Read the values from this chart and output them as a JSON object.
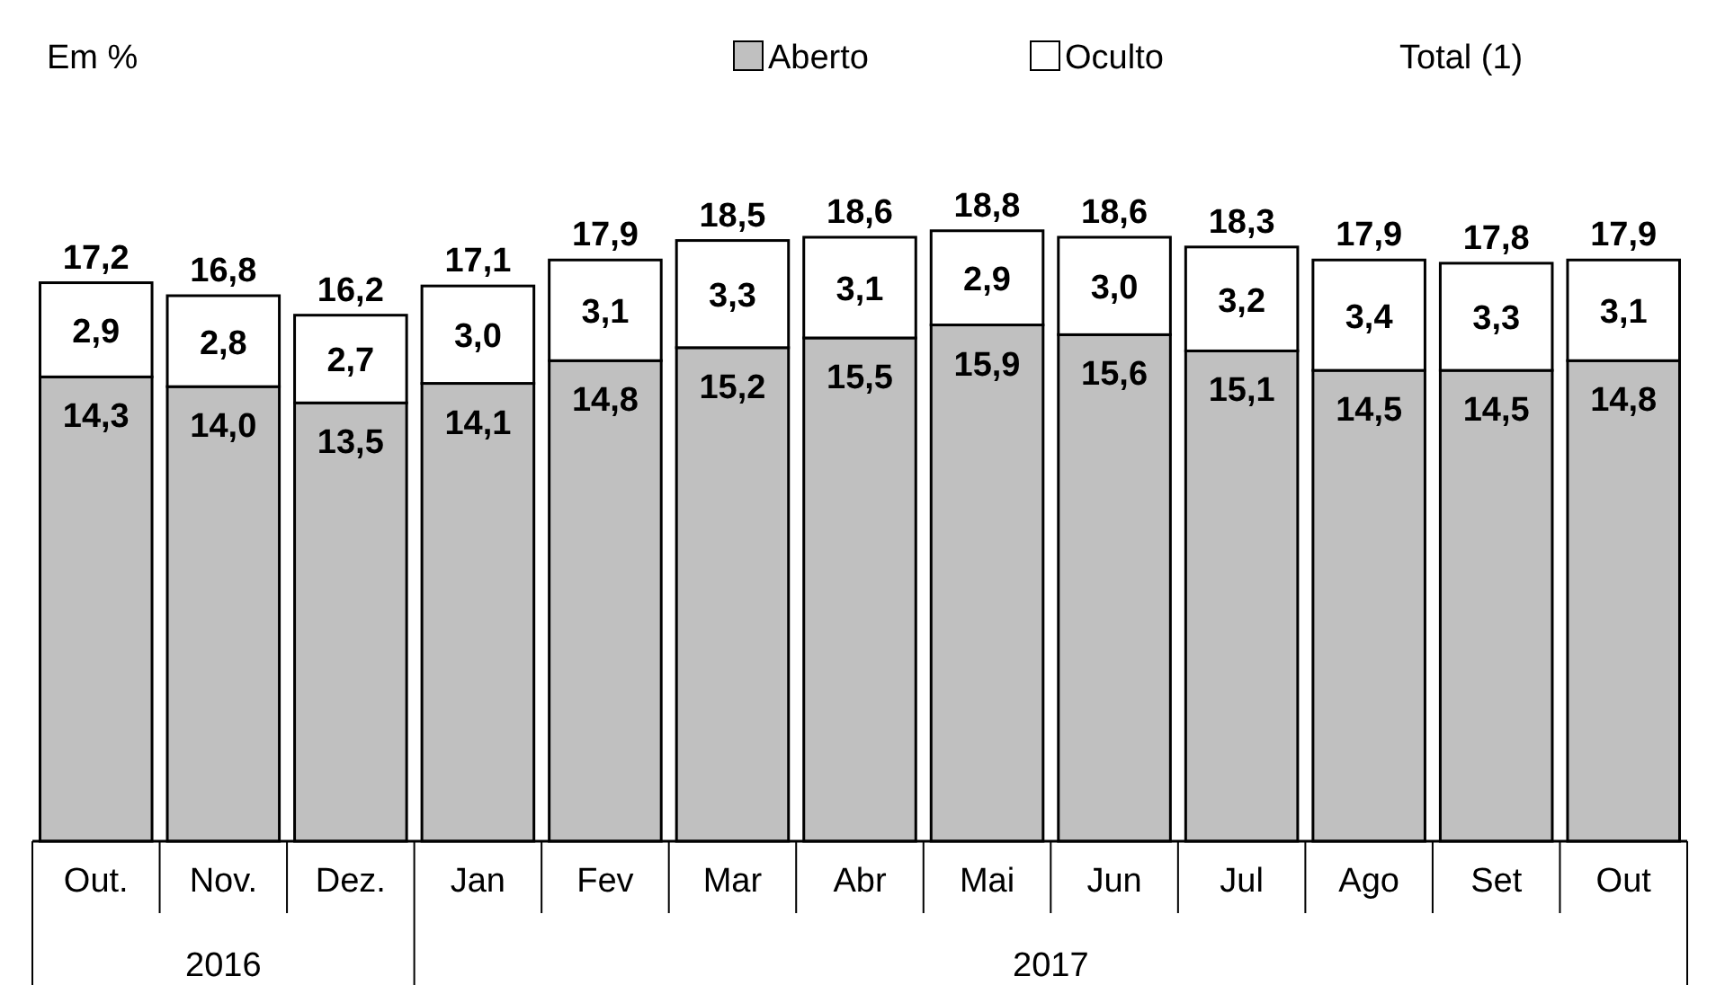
{
  "chart_data": {
    "type": "bar",
    "stacked": true,
    "ylabel": "Em %",
    "legend": "top right",
    "legend_title": "Total (1)",
    "categories": [
      "Out.",
      "Nov.",
      "Dez.",
      "Jan",
      "Fev",
      "Mar",
      "Abr",
      "Mai",
      "Jun",
      "Jul",
      "Ago",
      "Set",
      "Out"
    ],
    "series": [
      {
        "name": "Aberto",
        "color": "#c0c0c0",
        "values": [
          14.3,
          14.0,
          13.5,
          14.1,
          14.8,
          15.2,
          15.5,
          15.9,
          15.6,
          15.1,
          14.5,
          14.5,
          14.8
        ],
        "value_labels": [
          "14,3",
          "14,0",
          "13,5",
          "14,1",
          "14,8",
          "15,2",
          "15,5",
          "15,9",
          "15,6",
          "15,1",
          "14,5",
          "14,5",
          "14,8"
        ]
      },
      {
        "name": "Oculto",
        "color": "#ffffff",
        "values": [
          2.9,
          2.8,
          2.7,
          3.0,
          3.1,
          3.3,
          3.1,
          2.9,
          3.0,
          3.2,
          3.4,
          3.3,
          3.1
        ],
        "value_labels": [
          "2,9",
          "2,8",
          "2,7",
          "3,0",
          "3,1",
          "3,3",
          "3,1",
          "2,9",
          "3,0",
          "3,2",
          "3,4",
          "3,3",
          "3,1"
        ]
      }
    ],
    "totals": [
      "17,2",
      "16,8",
      "16,2",
      "17,1",
      "17,9",
      "18,5",
      "18,6",
      "18,8",
      "18,6",
      "18,3",
      "17,9",
      "17,8",
      "17,9"
    ],
    "annotations": [
      "2016",
      "2017"
    ]
  }
}
